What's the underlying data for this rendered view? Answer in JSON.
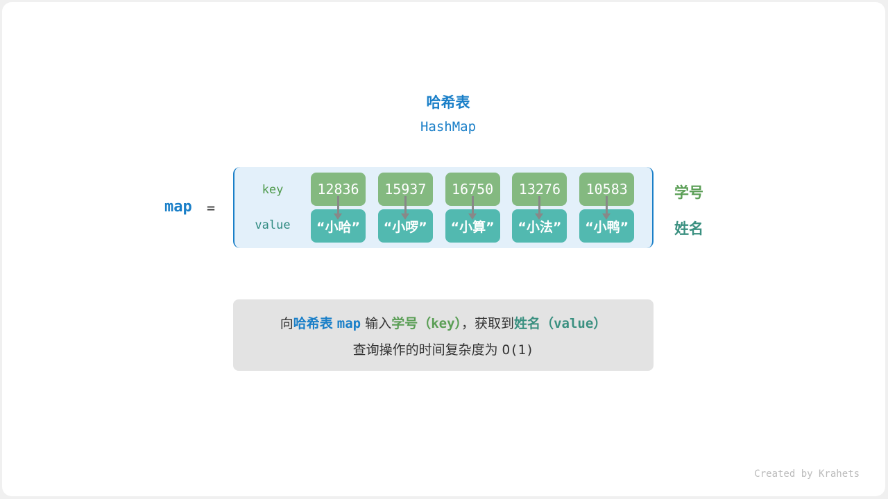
{
  "title": "哈希表",
  "subtitle": "HashMap",
  "map_label": "map",
  "equals": "=",
  "row_labels": {
    "key": "key",
    "value": "value"
  },
  "entries": [
    {
      "key": "12836",
      "value": "“小哈”"
    },
    {
      "key": "15937",
      "value": "“小啰”"
    },
    {
      "key": "16750",
      "value": "“小算”"
    },
    {
      "key": "13276",
      "value": "“小法”"
    },
    {
      "key": "10583",
      "value": "“小鸭”"
    }
  ],
  "side_labels": {
    "key": "学号",
    "value": "姓名"
  },
  "note": {
    "p1": "向",
    "p2": "哈希表",
    "p3": "map",
    "p4": "输入",
    "p5": "学号",
    "p6": "（key）",
    "p7": "，获取到",
    "p8": "姓名",
    "p9": "（value）",
    "line2a": "查询操作的时间复杂度为",
    "line2b": "O(1)"
  },
  "credit": "Created by Krahets",
  "colors": {
    "blue": "#1a7fc8",
    "key_green": "#84b980",
    "value_teal": "#52b9b0",
    "text_green": "#5a9e55",
    "text_teal": "#3a9080"
  }
}
